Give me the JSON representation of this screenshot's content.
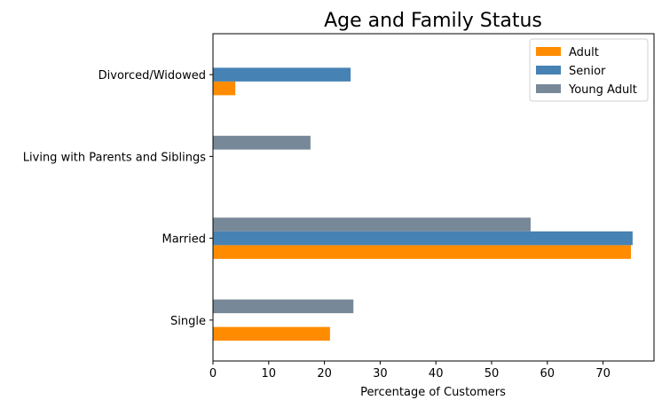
{
  "chart_data": {
    "type": "bar",
    "orientation": "horizontal",
    "title": "Age and Family Status",
    "xlabel": "Percentage of Customers",
    "ylabel": "",
    "xlim": [
      0,
      79
    ],
    "xticks": [
      0,
      10,
      20,
      30,
      40,
      50,
      60,
      70
    ],
    "categories": [
      "Single",
      "Married",
      "Living with Parents and Siblings",
      "Divorced/Widowed"
    ],
    "series": [
      {
        "name": "Adult",
        "color": "#ff8c00",
        "values": [
          21,
          75,
          0,
          4
        ]
      },
      {
        "name": "Senior",
        "color": "#4682b4",
        "values": [
          0,
          75.3,
          0,
          24.7
        ]
      },
      {
        "name": "Young Adult",
        "color": "#778899",
        "values": [
          25.2,
          57,
          17.5,
          0
        ]
      }
    ],
    "legend_position": "top-right",
    "grid": false
  }
}
